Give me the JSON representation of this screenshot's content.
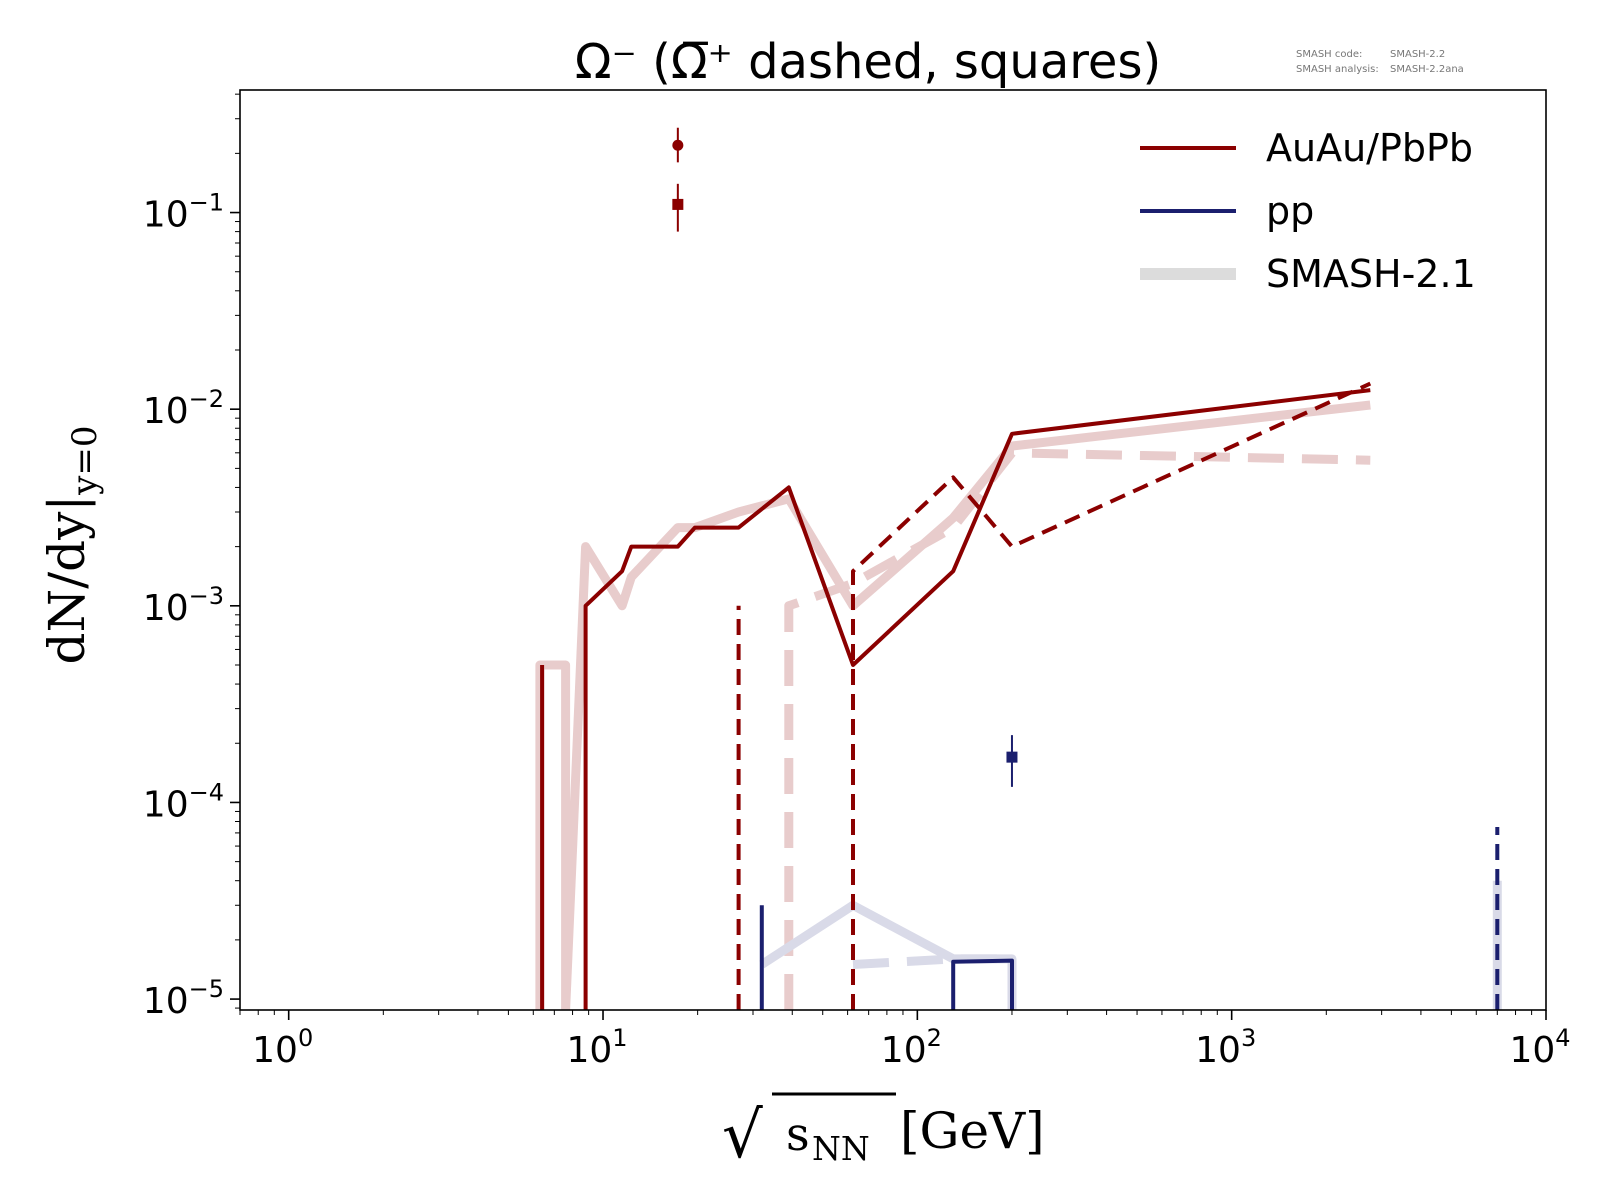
{
  "chart_data": {
    "type": "line",
    "title": "Ω⁻ (Ω̅⁺ dashed, squares)",
    "version_note": {
      "line1_key": "SMASH code:",
      "line1_val": "SMASH-2.2",
      "line2_key": "SMASH analysis:",
      "line2_val": "SMASH-2.2ana"
    },
    "xlabel": {
      "root": "√",
      "base": "s",
      "sub": "NN",
      "unit": "[GeV]"
    },
    "ylabel": {
      "main": "dN/dy|",
      "sub": "y=0"
    },
    "x_scale": "log",
    "y_scale": "log",
    "xlim": [
      0.7,
      10000
    ],
    "ylim": [
      8.8e-06,
      0.42
    ],
    "x_ticks": [
      {
        "value": 1,
        "base": "10",
        "exp": "0"
      },
      {
        "value": 10,
        "base": "10",
        "exp": "1"
      },
      {
        "value": 100,
        "base": "10",
        "exp": "2"
      },
      {
        "value": 1000,
        "base": "10",
        "exp": "3"
      },
      {
        "value": 10000,
        "base": "10",
        "exp": "4"
      }
    ],
    "y_ticks": [
      {
        "value": 1e-05,
        "base": "10",
        "exp": "−5"
      },
      {
        "value": 0.0001,
        "base": "10",
        "exp": "−4"
      },
      {
        "value": 0.001,
        "base": "10",
        "exp": "−3"
      },
      {
        "value": 0.01,
        "base": "10",
        "exp": "−2"
      },
      {
        "value": 0.1,
        "base": "10",
        "exp": "−1"
      }
    ],
    "legend": {
      "position": "top-right",
      "entries": [
        {
          "label": "AuAu/PbPb",
          "color": "#8b0000",
          "style": "solid"
        },
        {
          "label": "pp",
          "color": "#1b1f6e",
          "style": "solid"
        },
        {
          "label": "SMASH-2.1",
          "color": "#dcdcdc",
          "style": "thick-faded"
        }
      ]
    },
    "colors": {
      "auau": "#8b0000",
      "pp": "#1b1f6e",
      "auau_faded": "#e8cccc",
      "pp_faded": "#d9dae8",
      "legend_faded": "#dcdcdc"
    },
    "series": [
      {
        "group": "smash21",
        "system": "auau",
        "particle": "omega-minus",
        "dashed": false,
        "x": [
          6.3,
          6.3,
          7.6,
          7.6,
          8.8,
          11.5,
          12.3,
          17.3,
          19.6,
          27,
          39,
          62.4,
          130,
          200,
          2760
        ],
        "y": [
          8.8e-06,
          0.0005,
          0.0005,
          8.8e-06,
          0.002,
          0.001,
          0.0014,
          0.0025,
          0.0025,
          0.003,
          0.0035,
          0.001,
          0.0028,
          0.0065,
          0.0105
        ]
      },
      {
        "group": "smash21",
        "system": "auau",
        "particle": "antiomega-plus",
        "dashed": true,
        "x": [
          39,
          39,
          62.4,
          130,
          200,
          2760
        ],
        "y": [
          8.8e-06,
          0.001,
          0.0013,
          0.0025,
          0.006,
          0.0055
        ]
      },
      {
        "group": "smash21",
        "system": "pp",
        "particle": "omega-minus",
        "dashed": false,
        "x": [
          32,
          62.4,
          130,
          200,
          200
        ],
        "y": [
          1.5e-05,
          3e-05,
          1.6e-05,
          1.6e-05,
          8.8e-06
        ]
      },
      {
        "group": "smash21",
        "system": "pp",
        "particle": "antiomega-plus",
        "dashed": true,
        "x": [
          62.4,
          130,
          200
        ],
        "y": [
          1.5e-05,
          1.6e-05,
          1.6e-05
        ]
      },
      {
        "group": "smash21",
        "system": "pp",
        "particle": "omega-minus",
        "dashed": false,
        "x": [
          7000,
          7000
        ],
        "y": [
          8.8e-06,
          4e-05
        ]
      },
      {
        "group": "smash22",
        "system": "auau",
        "particle": "omega-minus",
        "dashed": false,
        "x": [
          6.4,
          6.4
        ],
        "y": [
          8.8e-06,
          0.0005
        ]
      },
      {
        "group": "smash22",
        "system": "auau",
        "particle": "omega-minus",
        "dashed": false,
        "x": [
          8.8,
          8.8,
          11.5,
          12.3,
          17.3,
          19.6,
          27,
          39,
          62.4,
          130,
          200,
          2760
        ],
        "y": [
          8.8e-06,
          0.001,
          0.0015,
          0.002,
          0.002,
          0.0025,
          0.0025,
          0.004,
          0.0005,
          0.0015,
          0.0075,
          0.0125
        ]
      },
      {
        "group": "smash22",
        "system": "auau",
        "particle": "antiomega-plus",
        "dashed": true,
        "x": [
          27,
          27
        ],
        "y": [
          8.8e-06,
          0.001
        ]
      },
      {
        "group": "smash22",
        "system": "auau",
        "particle": "antiomega-plus",
        "dashed": true,
        "x": [
          62.4,
          62.4,
          130,
          200,
          2760
        ],
        "y": [
          8.8e-06,
          0.0015,
          0.0045,
          0.002,
          0.0135
        ]
      },
      {
        "group": "smash22",
        "system": "pp",
        "particle": "omega-minus",
        "dashed": false,
        "x": [
          32,
          32
        ],
        "y": [
          8.8e-06,
          3e-05
        ]
      },
      {
        "group": "smash22",
        "system": "pp",
        "particle": "omega-minus",
        "dashed": false,
        "x": [
          130,
          130,
          200,
          200
        ],
        "y": [
          8.8e-06,
          1.55e-05,
          1.57e-05,
          8.8e-06
        ]
      },
      {
        "group": "smash22",
        "system": "pp",
        "particle": "antiomega-plus",
        "dashed": true,
        "x": [
          7000,
          7000
        ],
        "y": [
          8.8e-06,
          7.5e-05
        ]
      }
    ],
    "experimental_points": [
      {
        "system": "auau",
        "marker": "circle",
        "x": 17.3,
        "y": 0.22,
        "err_low": 0.18,
        "err_high": 0.27
      },
      {
        "system": "auau",
        "marker": "square",
        "x": 17.3,
        "y": 0.11,
        "err_low": 0.08,
        "err_high": 0.14
      },
      {
        "system": "pp",
        "marker": "square",
        "x": 200,
        "y": 0.00017,
        "err_low": 0.00012,
        "err_high": 0.00022
      }
    ]
  }
}
